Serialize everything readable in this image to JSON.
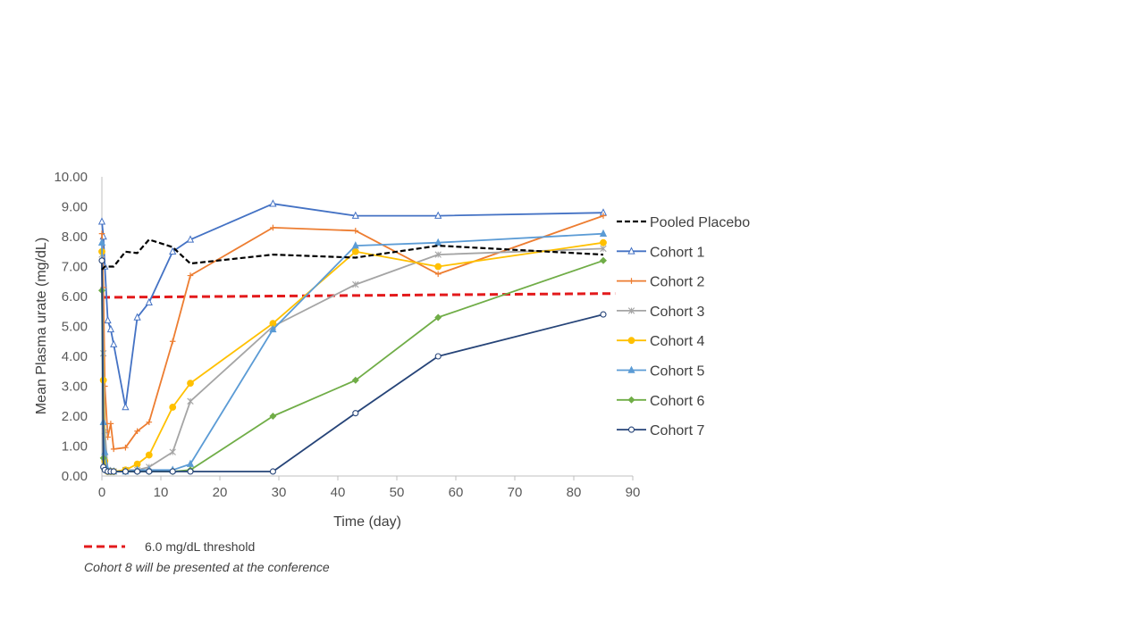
{
  "chart_data": {
    "type": "line",
    "title": "",
    "xlabel": "Time (day)",
    "ylabel": "Mean Plasma urate (mg/dL)",
    "xlim": [
      0,
      90
    ],
    "ylim": [
      0,
      10
    ],
    "xticks": [
      0,
      10,
      20,
      30,
      40,
      50,
      60,
      70,
      80,
      90
    ],
    "yticks": [
      "0.00",
      "1.00",
      "2.00",
      "3.00",
      "4.00",
      "5.00",
      "6.00",
      "7.00",
      "8.00",
      "9.00",
      "10.00"
    ],
    "grid": false,
    "legend_position": "right",
    "threshold": {
      "label": "6.0 mg/dL threshold",
      "y_start": 5.97,
      "y_end": 6.1,
      "x_start": 0,
      "x_end": 87,
      "color": "#e31a1c"
    },
    "footnote": "Cohort 8 will be presented at the conference",
    "series": [
      {
        "name": "Pooled Placebo",
        "color": "#000000",
        "dash": true,
        "marker": "none",
        "x": [
          0,
          0.5,
          1,
          2,
          4,
          6,
          8,
          12,
          15,
          29,
          43,
          57,
          85
        ],
        "y": [
          6.9,
          7.0,
          7.0,
          7.0,
          7.5,
          7.45,
          7.9,
          7.65,
          7.1,
          7.4,
          7.3,
          7.7,
          7.4
        ]
      },
      {
        "name": "Cohort 1",
        "color": "#4472c4",
        "marker": "triangle-open",
        "x": [
          0,
          0.25,
          0.5,
          1,
          1.5,
          2,
          4,
          6,
          8,
          12,
          15,
          29,
          43,
          57,
          85
        ],
        "y": [
          8.5,
          8.0,
          7.0,
          5.2,
          4.9,
          4.4,
          2.3,
          5.3,
          5.8,
          7.5,
          7.9,
          9.1,
          8.7,
          8.7,
          8.8
        ]
      },
      {
        "name": "Cohort 2",
        "color": "#ed7d31",
        "marker": "plus",
        "x": [
          0,
          0.25,
          0.5,
          1,
          1.5,
          2,
          4,
          6,
          8,
          12,
          15,
          29,
          43,
          57,
          85
        ],
        "y": [
          8.1,
          6.3,
          3.0,
          1.3,
          1.75,
          0.9,
          0.95,
          1.5,
          1.8,
          4.5,
          6.7,
          8.3,
          8.2,
          6.75,
          8.7
        ]
      },
      {
        "name": "Cohort 3",
        "color": "#a5a5a5",
        "marker": "star",
        "x": [
          0,
          0.25,
          0.5,
          1,
          1.5,
          2,
          4,
          6,
          8,
          12,
          15,
          29,
          43,
          57,
          85
        ],
        "y": [
          7.4,
          4.1,
          1.5,
          0.2,
          0.15,
          0.15,
          0.2,
          0.2,
          0.3,
          0.8,
          2.5,
          5.0,
          6.4,
          7.4,
          7.6
        ]
      },
      {
        "name": "Cohort 4",
        "color": "#ffc000",
        "marker": "circle-filled",
        "x": [
          0,
          0.25,
          0.5,
          1,
          1.5,
          2,
          4,
          6,
          8,
          12,
          15,
          29,
          43,
          57,
          85
        ],
        "y": [
          7.5,
          3.2,
          0.5,
          0.15,
          0.15,
          0.15,
          0.2,
          0.4,
          0.7,
          2.3,
          3.1,
          5.1,
          7.5,
          7.0,
          7.8
        ]
      },
      {
        "name": "Cohort 5",
        "color": "#5b9bd5",
        "marker": "triangle-filled",
        "x": [
          0,
          0.25,
          0.5,
          1,
          1.5,
          2,
          4,
          6,
          8,
          12,
          15,
          29,
          43,
          57,
          85
        ],
        "y": [
          7.8,
          1.8,
          0.8,
          0.2,
          0.15,
          0.15,
          0.15,
          0.2,
          0.2,
          0.2,
          0.4,
          4.9,
          7.7,
          7.8,
          8.1
        ]
      },
      {
        "name": "Cohort 6",
        "color": "#70ad47",
        "marker": "diamond-filled",
        "x": [
          0,
          0.25,
          0.5,
          1,
          1.5,
          2,
          4,
          6,
          8,
          12,
          15,
          29,
          43,
          57,
          85
        ],
        "y": [
          6.2,
          0.6,
          0.2,
          0.15,
          0.15,
          0.15,
          0.15,
          0.15,
          0.15,
          0.15,
          0.2,
          2.0,
          3.2,
          5.3,
          7.2
        ]
      },
      {
        "name": "Cohort 7",
        "color": "#264478",
        "marker": "circle-open",
        "x": [
          0,
          0.25,
          0.5,
          1,
          1.5,
          2,
          4,
          6,
          8,
          12,
          15,
          29,
          43,
          57,
          85
        ],
        "y": [
          7.2,
          0.3,
          0.2,
          0.15,
          0.15,
          0.15,
          0.15,
          0.15,
          0.15,
          0.15,
          0.15,
          0.15,
          2.1,
          4.0,
          5.4
        ]
      }
    ]
  }
}
